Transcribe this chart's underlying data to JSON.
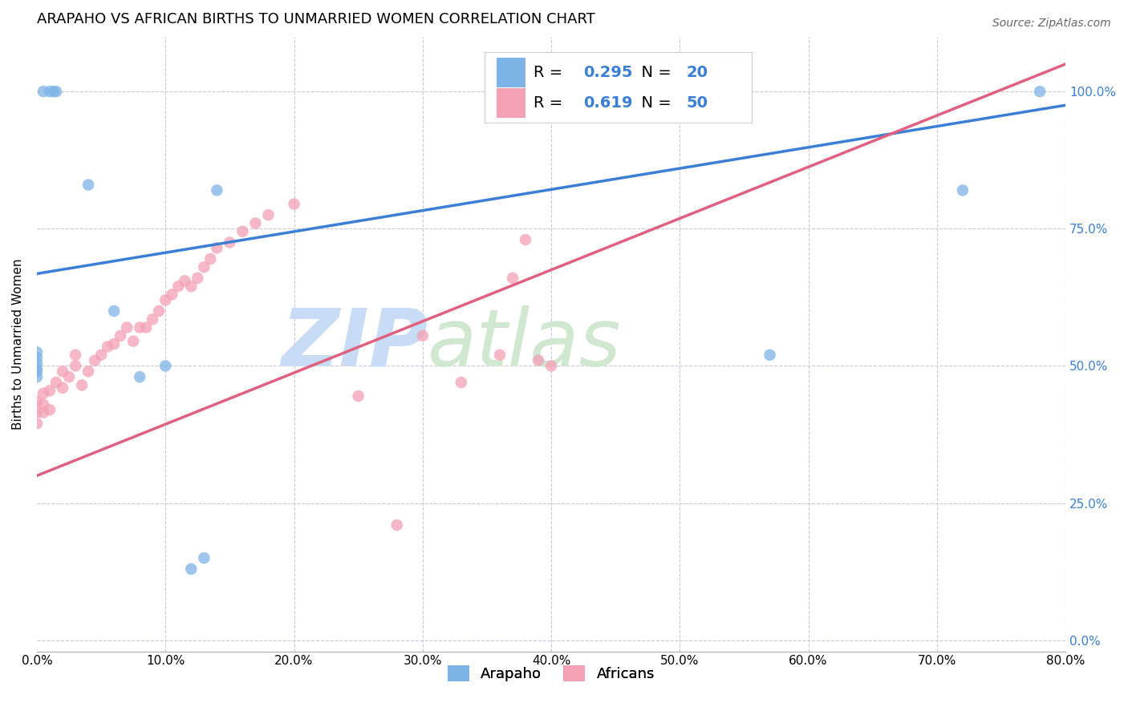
{
  "title": "ARAPAHO VS AFRICAN BIRTHS TO UNMARRIED WOMEN CORRELATION CHART",
  "source": "Source: ZipAtlas.com",
  "ylabel": "Births to Unmarried Women",
  "xlim": [
    0.0,
    0.8
  ],
  "ylim": [
    -0.02,
    1.1
  ],
  "ytick_vals": [
    0.0,
    0.25,
    0.5,
    0.75,
    1.0
  ],
  "xtick_vals": [
    0.0,
    0.1,
    0.2,
    0.3,
    0.4,
    0.5,
    0.6,
    0.7,
    0.8
  ],
  "arapaho_color": "#7eb3e8",
  "african_color": "#f4a0b5",
  "trendline_arapaho_color": "#3a7fd5",
  "trendline_african_color": "#e06080",
  "legend_R_color": "#3a7fd5",
  "right_tick_color": "#3a7fd5",
  "watermark_zip": "ZIP",
  "watermark_atlas": "atlas",
  "grid_color": "#c8c8d8",
  "background_color": "#ffffff",
  "title_fontsize": 13,
  "source_fontsize": 10,
  "axis_label_fontsize": 11,
  "tick_fontsize": 11,
  "legend_fontsize": 14,
  "marker_size": 110,
  "marker_alpha": 0.75,
  "arapaho_x": [
    0.005,
    0.01,
    0.013,
    0.015,
    0.04,
    0.0,
    0.0,
    0.0,
    0.0,
    0.0,
    0.0,
    0.06,
    0.08,
    0.1,
    0.12,
    0.13,
    0.14,
    0.57,
    0.72,
    0.78
  ],
  "arapaho_y": [
    1.0,
    1.0,
    1.0,
    1.0,
    0.83,
    0.49,
    0.48,
    0.495,
    0.505,
    0.515,
    0.525,
    0.6,
    0.48,
    0.5,
    0.13,
    0.15,
    0.82,
    0.52,
    0.82,
    1.0
  ],
  "african_x": [
    0.0,
    0.0,
    0.0,
    0.005,
    0.005,
    0.005,
    0.01,
    0.01,
    0.015,
    0.02,
    0.02,
    0.025,
    0.03,
    0.03,
    0.035,
    0.04,
    0.045,
    0.05,
    0.055,
    0.06,
    0.065,
    0.07,
    0.075,
    0.08,
    0.085,
    0.09,
    0.095,
    0.1,
    0.105,
    0.11,
    0.115,
    0.12,
    0.125,
    0.13,
    0.135,
    0.14,
    0.15,
    0.16,
    0.17,
    0.18,
    0.2,
    0.25,
    0.28,
    0.3,
    0.33,
    0.36,
    0.39,
    0.37,
    0.38,
    0.4
  ],
  "african_y": [
    0.395,
    0.415,
    0.435,
    0.415,
    0.43,
    0.45,
    0.42,
    0.455,
    0.47,
    0.46,
    0.49,
    0.48,
    0.5,
    0.52,
    0.465,
    0.49,
    0.51,
    0.52,
    0.535,
    0.54,
    0.555,
    0.57,
    0.545,
    0.57,
    0.57,
    0.585,
    0.6,
    0.62,
    0.63,
    0.645,
    0.655,
    0.645,
    0.66,
    0.68,
    0.695,
    0.715,
    0.725,
    0.745,
    0.76,
    0.775,
    0.795,
    0.445,
    0.21,
    0.555,
    0.47,
    0.52,
    0.51,
    0.66,
    0.73,
    0.5
  ],
  "trendline_arapaho_x0": 0.0,
  "trendline_arapaho_y0": 0.668,
  "trendline_arapaho_x1": 0.8,
  "trendline_arapaho_y1": 0.975,
  "trendline_african_x0": 0.0,
  "trendline_african_y0": 0.3,
  "trendline_african_x1": 0.8,
  "trendline_african_y1": 1.05
}
